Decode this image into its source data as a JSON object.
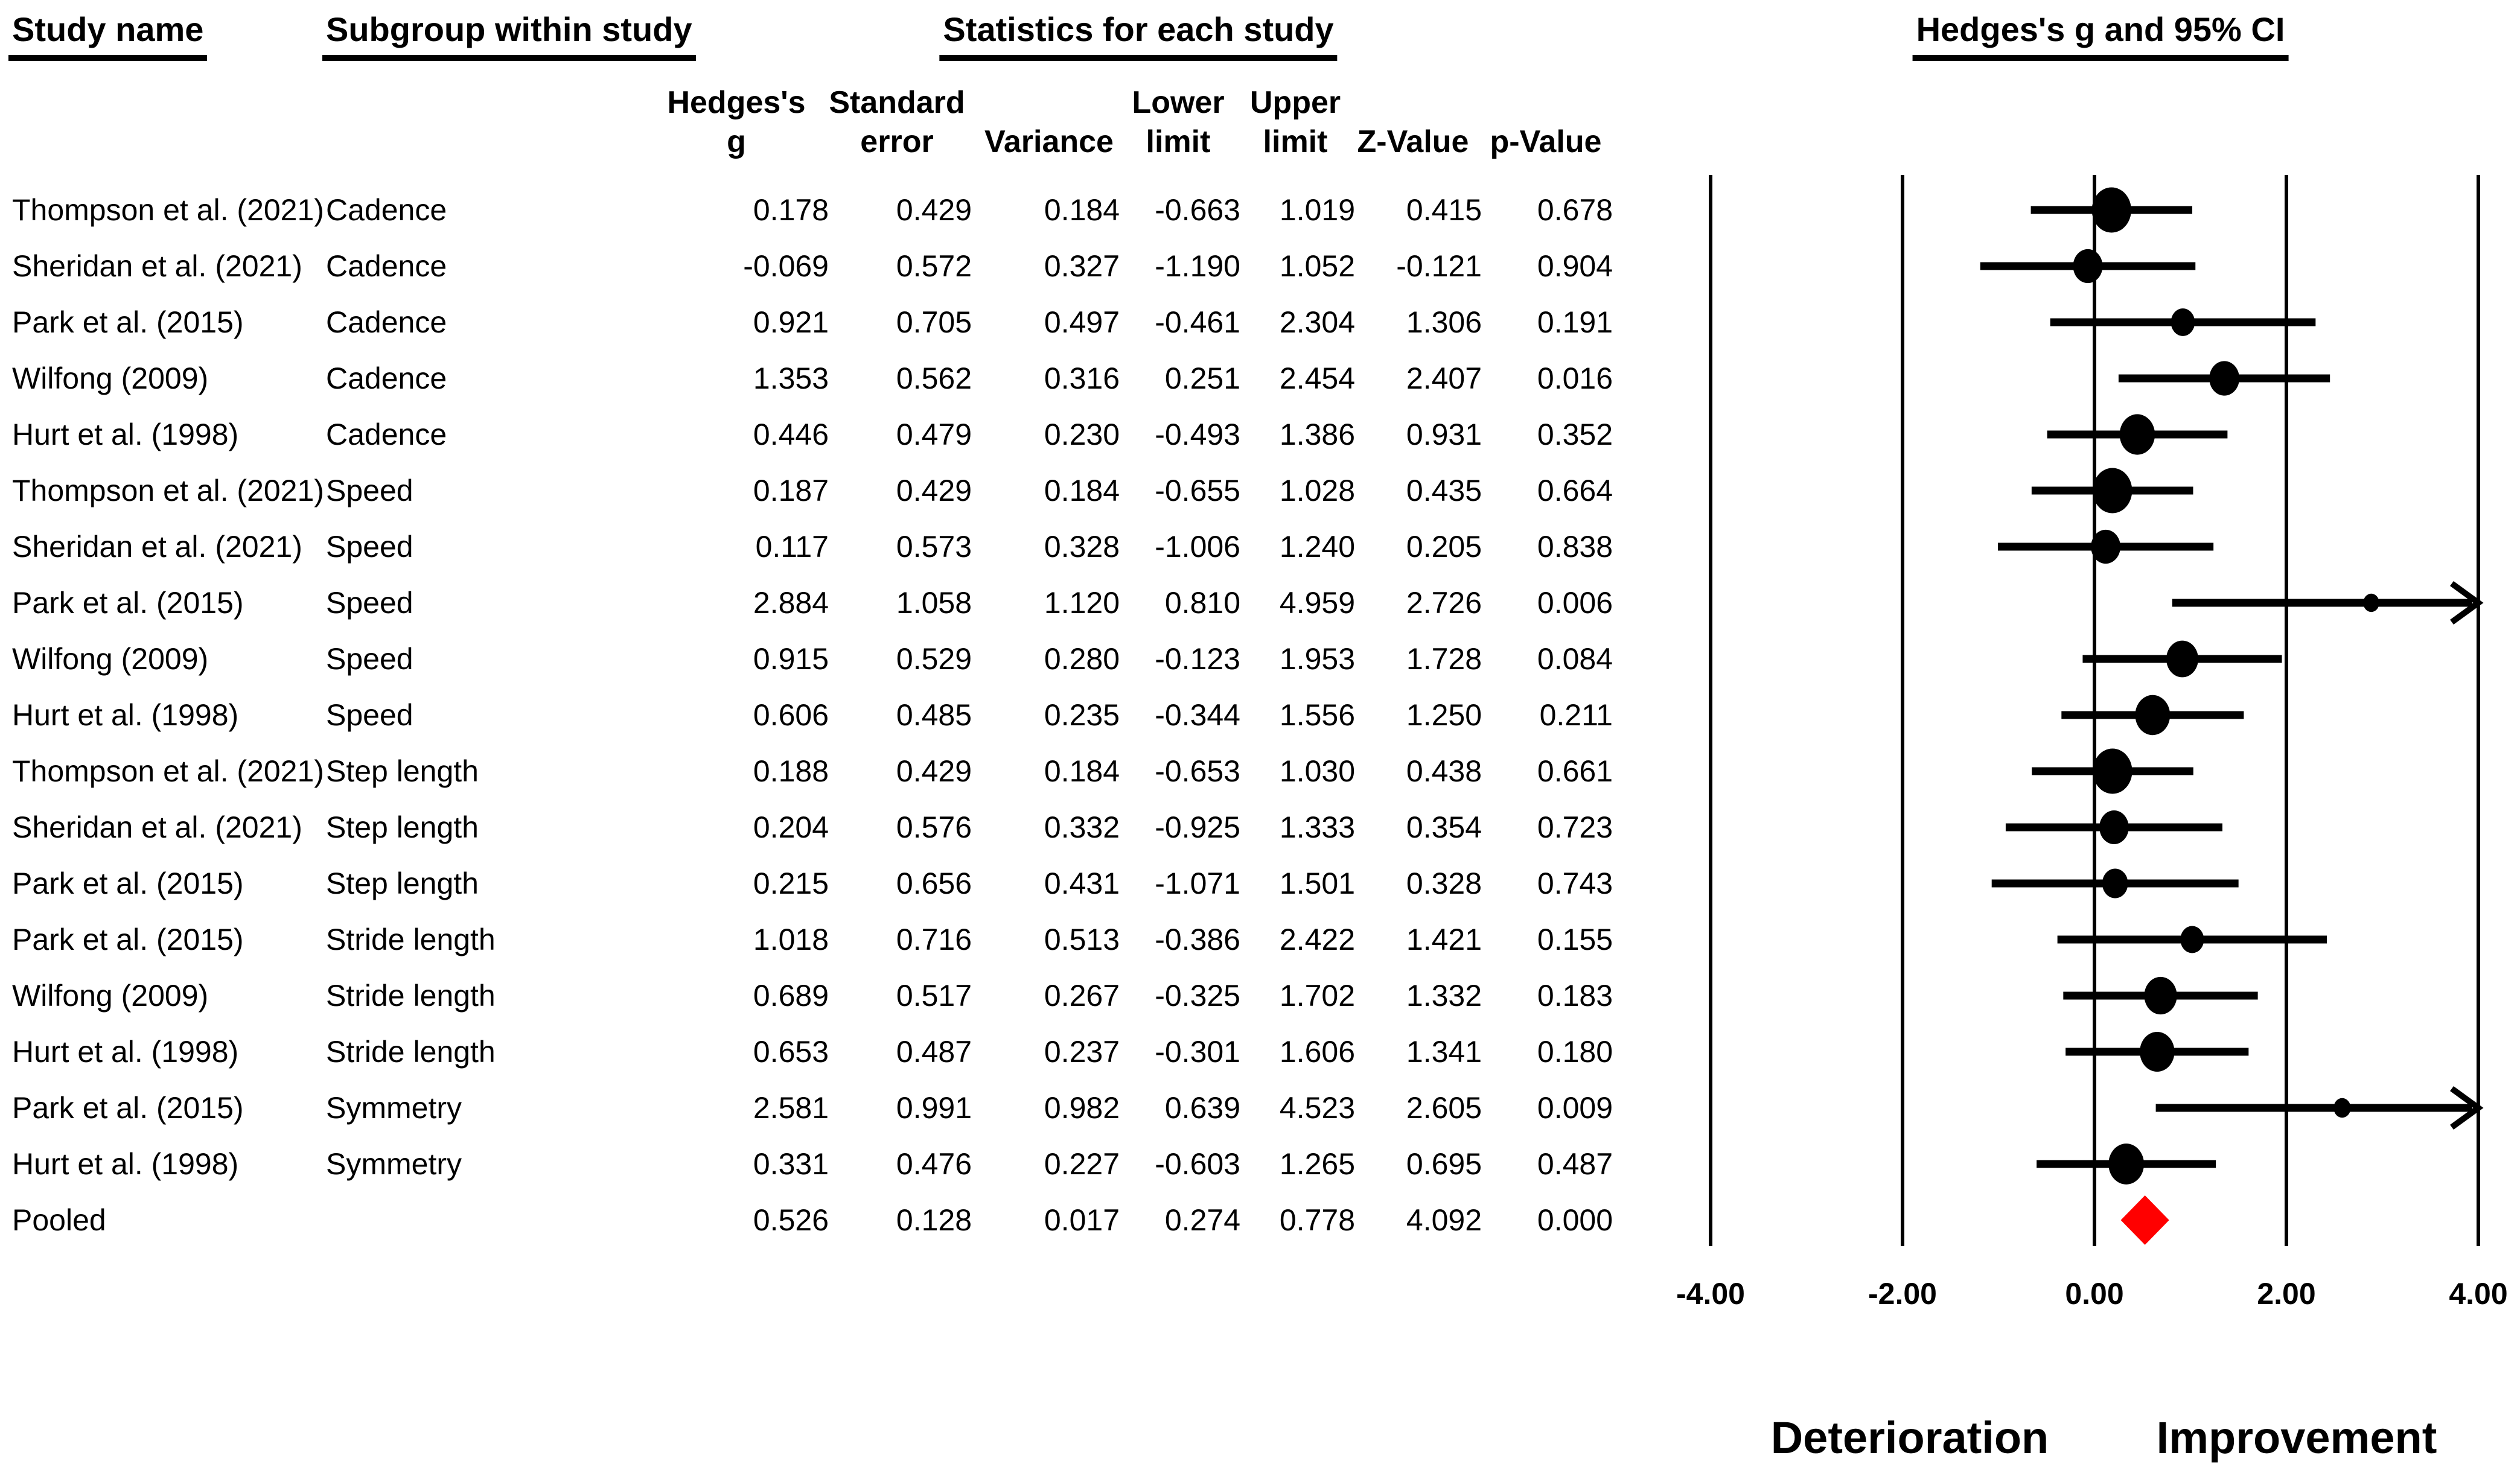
{
  "titles": {
    "study_name": "Study name",
    "subgroup": "Subgroup within study",
    "stats": "Statistics for each study",
    "plot": "Hedges's g and 95% CI"
  },
  "columns": {
    "hedges_line1": "Hedges's",
    "hedges_line2": "g",
    "se_line1": "Standard",
    "se_line2": "error",
    "variance": "Variance",
    "lower_line1": "Lower",
    "lower_line2": "limit",
    "upper_line1": "Upper",
    "upper_line2": "limit",
    "z": "Z-Value",
    "p": "p-Value"
  },
  "rows": [
    {
      "study": "Thompson et al. (2021)",
      "subgroup": "Cadence",
      "g": "0.178",
      "se": "0.429",
      "variance": "0.184",
      "lower": "-0.663",
      "upper": "1.019",
      "z": "0.415",
      "p": "0.678"
    },
    {
      "study": "Sheridan et al. (2021)",
      "subgroup": "Cadence",
      "g": "-0.069",
      "se": "0.572",
      "variance": "0.327",
      "lower": "-1.190",
      "upper": "1.052",
      "z": "-0.121",
      "p": "0.904"
    },
    {
      "study": "Park et al. (2015)",
      "subgroup": "Cadence",
      "g": "0.921",
      "se": "0.705",
      "variance": "0.497",
      "lower": "-0.461",
      "upper": "2.304",
      "z": "1.306",
      "p": "0.191"
    },
    {
      "study": "Wilfong (2009)",
      "subgroup": "Cadence",
      "g": "1.353",
      "se": "0.562",
      "variance": "0.316",
      "lower": "0.251",
      "upper": "2.454",
      "z": "2.407",
      "p": "0.016"
    },
    {
      "study": "Hurt et al. (1998)",
      "subgroup": "Cadence",
      "g": "0.446",
      "se": "0.479",
      "variance": "0.230",
      "lower": "-0.493",
      "upper": "1.386",
      "z": "0.931",
      "p": "0.352"
    },
    {
      "study": "Thompson et al. (2021)",
      "subgroup": "Speed",
      "g": "0.187",
      "se": "0.429",
      "variance": "0.184",
      "lower": "-0.655",
      "upper": "1.028",
      "z": "0.435",
      "p": "0.664"
    },
    {
      "study": "Sheridan et al. (2021)",
      "subgroup": "Speed",
      "g": "0.117",
      "se": "0.573",
      "variance": "0.328",
      "lower": "-1.006",
      "upper": "1.240",
      "z": "0.205",
      "p": "0.838"
    },
    {
      "study": "Park et al. (2015)",
      "subgroup": "Speed",
      "g": "2.884",
      "se": "1.058",
      "variance": "1.120",
      "lower": "0.810",
      "upper": "4.959",
      "z": "2.726",
      "p": "0.006"
    },
    {
      "study": "Wilfong (2009)",
      "subgroup": "Speed",
      "g": "0.915",
      "se": "0.529",
      "variance": "0.280",
      "lower": "-0.123",
      "upper": "1.953",
      "z": "1.728",
      "p": "0.084"
    },
    {
      "study": "Hurt et al. (1998)",
      "subgroup": "Speed",
      "g": "0.606",
      "se": "0.485",
      "variance": "0.235",
      "lower": "-0.344",
      "upper": "1.556",
      "z": "1.250",
      "p": "0.211"
    },
    {
      "study": "Thompson et al. (2021)",
      "subgroup": "Step length",
      "g": "0.188",
      "se": "0.429",
      "variance": "0.184",
      "lower": "-0.653",
      "upper": "1.030",
      "z": "0.438",
      "p": "0.661"
    },
    {
      "study": "Sheridan et al. (2021)",
      "subgroup": "Step length",
      "g": "0.204",
      "se": "0.576",
      "variance": "0.332",
      "lower": "-0.925",
      "upper": "1.333",
      "z": "0.354",
      "p": "0.723"
    },
    {
      "study": "Park et al. (2015)",
      "subgroup": "Step length",
      "g": "0.215",
      "se": "0.656",
      "variance": "0.431",
      "lower": "-1.071",
      "upper": "1.501",
      "z": "0.328",
      "p": "0.743"
    },
    {
      "study": "Park et al. (2015)",
      "subgroup": "Stride length",
      "g": "1.018",
      "se": "0.716",
      "variance": "0.513",
      "lower": "-0.386",
      "upper": "2.422",
      "z": "1.421",
      "p": "0.155"
    },
    {
      "study": "Wilfong (2009)",
      "subgroup": "Stride length",
      "g": "0.689",
      "se": "0.517",
      "variance": "0.267",
      "lower": "-0.325",
      "upper": "1.702",
      "z": "1.332",
      "p": "0.183"
    },
    {
      "study": "Hurt et al. (1998)",
      "subgroup": "Stride length",
      "g": "0.653",
      "se": "0.487",
      "variance": "0.237",
      "lower": "-0.301",
      "upper": "1.606",
      "z": "1.341",
      "p": "0.180"
    },
    {
      "study": "Park et al. (2015)",
      "subgroup": "Symmetry",
      "g": "2.581",
      "se": "0.991",
      "variance": "0.982",
      "lower": "0.639",
      "upper": "4.523",
      "z": "2.605",
      "p": "0.009"
    },
    {
      "study": "Hurt et al. (1998)",
      "subgroup": "Symmetry",
      "g": "0.331",
      "se": "0.476",
      "variance": "0.227",
      "lower": "-0.603",
      "upper": "1.265",
      "z": "0.695",
      "p": "0.487"
    },
    {
      "study": "Pooled",
      "subgroup": "",
      "g": "0.526",
      "se": "0.128",
      "variance": "0.017",
      "lower": "0.274",
      "upper": "0.778",
      "z": "4.092",
      "p": "0.000"
    }
  ],
  "footer": {
    "left": "Deterioration",
    "right": "Improvement"
  },
  "colors": {
    "pooled_diamond": "#FF0000",
    "ink": "#000000"
  },
  "chart_data": {
    "type": "scatter",
    "subtype": "forest-plot",
    "title": "Hedges's g and 95% CI",
    "xlim": [
      -4,
      4
    ],
    "xticks": [
      -4,
      -2,
      0,
      2,
      4
    ],
    "xtick_labels": [
      "-4.00",
      "-2.00",
      "0.00",
      "2.00",
      "4.00"
    ],
    "grid": "vertical-lines-at-ticks",
    "direction_labels": {
      "negative": "Deterioration",
      "positive": "Improvement"
    },
    "studies": [
      {
        "label": "Thompson et al. (2021)",
        "subgroup": "Cadence",
        "g": 0.178,
        "se": 0.429,
        "lower": -0.663,
        "upper": 1.019
      },
      {
        "label": "Sheridan et al. (2021)",
        "subgroup": "Cadence",
        "g": -0.069,
        "se": 0.572,
        "lower": -1.19,
        "upper": 1.052
      },
      {
        "label": "Park et al. (2015)",
        "subgroup": "Cadence",
        "g": 0.921,
        "se": 0.705,
        "lower": -0.461,
        "upper": 2.304
      },
      {
        "label": "Wilfong (2009)",
        "subgroup": "Cadence",
        "g": 1.353,
        "se": 0.562,
        "lower": 0.251,
        "upper": 2.454
      },
      {
        "label": "Hurt et al. (1998)",
        "subgroup": "Cadence",
        "g": 0.446,
        "se": 0.479,
        "lower": -0.493,
        "upper": 1.386
      },
      {
        "label": "Thompson et al. (2021)",
        "subgroup": "Speed",
        "g": 0.187,
        "se": 0.429,
        "lower": -0.655,
        "upper": 1.028
      },
      {
        "label": "Sheridan et al. (2021)",
        "subgroup": "Speed",
        "g": 0.117,
        "se": 0.573,
        "lower": -1.006,
        "upper": 1.24
      },
      {
        "label": "Park et al. (2015)",
        "subgroup": "Speed",
        "g": 2.884,
        "se": 1.058,
        "lower": 0.81,
        "upper": 4.959
      },
      {
        "label": "Wilfong (2009)",
        "subgroup": "Speed",
        "g": 0.915,
        "se": 0.529,
        "lower": -0.123,
        "upper": 1.953
      },
      {
        "label": "Hurt et al. (1998)",
        "subgroup": "Speed",
        "g": 0.606,
        "se": 0.485,
        "lower": -0.344,
        "upper": 1.556
      },
      {
        "label": "Thompson et al. (2021)",
        "subgroup": "Step length",
        "g": 0.188,
        "se": 0.429,
        "lower": -0.653,
        "upper": 1.03
      },
      {
        "label": "Sheridan et al. (2021)",
        "subgroup": "Step length",
        "g": 0.204,
        "se": 0.576,
        "lower": -0.925,
        "upper": 1.333
      },
      {
        "label": "Park et al. (2015)",
        "subgroup": "Step length",
        "g": 0.215,
        "se": 0.656,
        "lower": -1.071,
        "upper": 1.501
      },
      {
        "label": "Park et al. (2015)",
        "subgroup": "Stride length",
        "g": 1.018,
        "se": 0.716,
        "lower": -0.386,
        "upper": 2.422
      },
      {
        "label": "Wilfong (2009)",
        "subgroup": "Stride length",
        "g": 0.689,
        "se": 0.517,
        "lower": -0.325,
        "upper": 1.702
      },
      {
        "label": "Hurt et al. (1998)",
        "subgroup": "Stride length",
        "g": 0.653,
        "se": 0.487,
        "lower": -0.301,
        "upper": 1.606
      },
      {
        "label": "Park et al. (2015)",
        "subgroup": "Symmetry",
        "g": 2.581,
        "se": 0.991,
        "lower": 0.639,
        "upper": 4.523
      },
      {
        "label": "Hurt et al. (1998)",
        "subgroup": "Symmetry",
        "g": 0.331,
        "se": 0.476,
        "lower": -0.603,
        "upper": 1.265
      }
    ],
    "pooled": {
      "label": "Pooled",
      "g": 0.526,
      "lower": 0.274,
      "upper": 0.778,
      "color": "#FF0000"
    }
  }
}
